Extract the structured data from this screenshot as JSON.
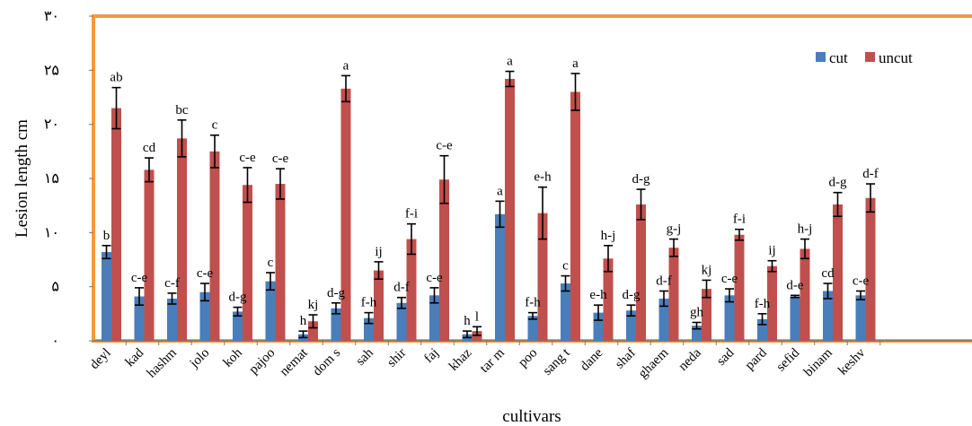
{
  "chart_data": {
    "type": "bar",
    "title": "",
    "xlabel": "cultivars",
    "ylabel": "Lesion length cm",
    "ylim": [
      0,
      30
    ],
    "yticks": [
      {
        "value": 0,
        "label": "٠"
      },
      {
        "value": 5,
        "label": "۵"
      },
      {
        "value": 10,
        "label": "١٠"
      },
      {
        "value": 15,
        "label": "١۵"
      },
      {
        "value": 20,
        "label": "٢٠"
      },
      {
        "value": 25,
        "label": "٢۵"
      },
      {
        "value": 30,
        "label": "٣٠"
      }
    ],
    "categories": [
      "deyl",
      "kad",
      "hashm",
      "jolo",
      "koh",
      "pajoo",
      "nemat",
      "dom s",
      "sah",
      "shir",
      "faj",
      "khaz",
      "tar m",
      "poo",
      "sang t",
      "dane",
      "shaf",
      "ghaem",
      "neda",
      "sad",
      "pard",
      "sefid",
      "binam",
      "keshv"
    ],
    "legend_position": "top-right",
    "series": [
      {
        "name": "cut",
        "color": "#4a7ebb",
        "values": [
          8.2,
          4.1,
          3.9,
          4.5,
          2.7,
          5.5,
          0.6,
          3.0,
          2.1,
          3.5,
          4.2,
          0.6,
          11.7,
          2.3,
          5.3,
          2.6,
          2.8,
          3.9,
          1.4,
          4.2,
          2.0,
          4.1,
          4.6,
          4.2
        ],
        "errors": [
          0.6,
          0.8,
          0.5,
          0.8,
          0.4,
          0.8,
          0.3,
          0.5,
          0.5,
          0.5,
          0.7,
          0.3,
          1.2,
          0.3,
          0.7,
          0.7,
          0.5,
          0.7,
          0.3,
          0.6,
          0.5,
          0.1,
          0.7,
          0.4
        ],
        "labels": [
          "b",
          "c-e",
          "c-f",
          "c-e",
          "d-g",
          "c",
          "h",
          "d-g",
          "f-h",
          "d-f",
          "c-e",
          "h",
          "a",
          "f-h",
          "c",
          "e-h",
          "d-g",
          "d-f",
          "gh",
          "c-e",
          "f-h",
          "d-e",
          "cd",
          "c-e"
        ]
      },
      {
        "name": "uncut",
        "color": "#c0504d",
        "values": [
          21.5,
          15.8,
          18.7,
          17.5,
          14.4,
          14.5,
          1.8,
          23.3,
          6.5,
          9.4,
          14.9,
          0.9,
          24.2,
          11.8,
          23.0,
          7.6,
          12.6,
          8.6,
          4.8,
          9.8,
          6.9,
          8.5,
          12.6,
          13.2
        ],
        "errors": [
          1.9,
          1.1,
          1.7,
          1.5,
          1.6,
          1.4,
          0.6,
          1.2,
          0.8,
          1.4,
          2.2,
          0.4,
          0.7,
          2.4,
          1.7,
          1.2,
          1.4,
          0.8,
          0.8,
          0.5,
          0.5,
          0.9,
          1.1,
          1.3
        ],
        "labels": [
          "ab",
          "cd",
          "bc",
          "c",
          "c-e",
          "c-e",
          "kj",
          "a",
          "ij",
          "f-i",
          "c-e",
          "l",
          "a",
          "e-h",
          "a",
          "h-j",
          "d-g",
          "g-j",
          "kj",
          "f-i",
          "ij",
          "h-j",
          "d-g",
          "d-f"
        ]
      }
    ]
  }
}
